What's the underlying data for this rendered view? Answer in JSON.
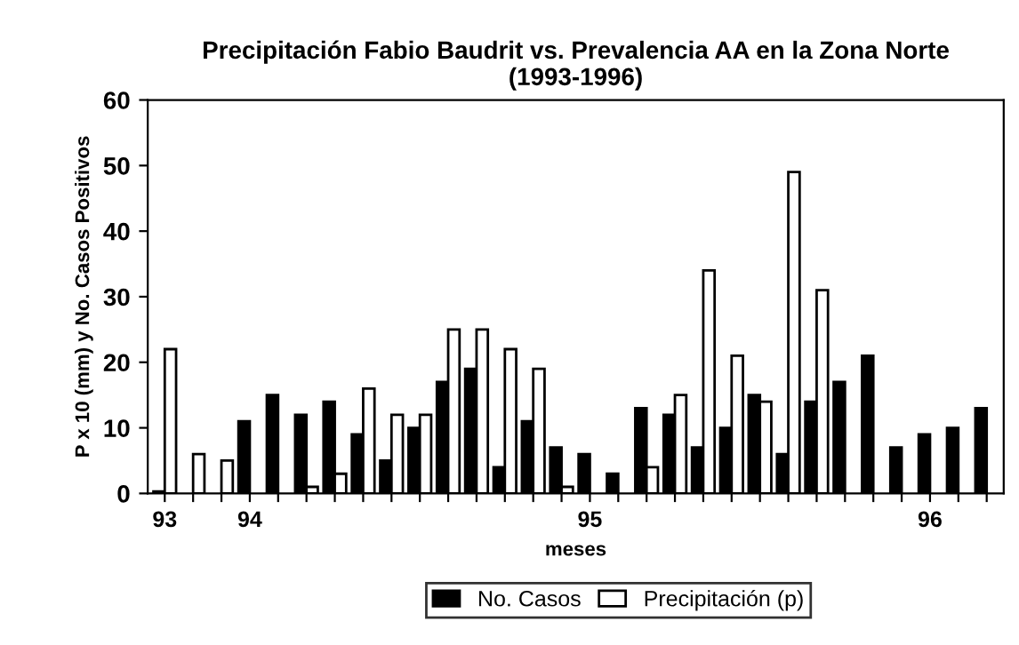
{
  "chart_data": {
    "type": "bar",
    "title": "Precipitación Fabio Baudrit vs. Prevalencia AA en la Zona Norte\n(1993-1996)",
    "xlabel": "meses",
    "ylabel": "P x 10 (mm) y No. Casos Positivos",
    "categories": [
      "93",
      null,
      null,
      "94",
      null,
      null,
      null,
      null,
      null,
      null,
      null,
      null,
      null,
      null,
      null,
      "95",
      null,
      null,
      null,
      null,
      null,
      null,
      null,
      null,
      null,
      null,
      null,
      "96",
      null,
      null
    ],
    "series": [
      {
        "name": "No. Casos",
        "color": "#000000",
        "values": [
          0.3,
          0,
          0,
          11,
          15,
          12,
          14,
          9,
          5,
          10,
          17,
          19,
          4,
          11,
          7,
          6,
          3,
          13,
          12,
          7,
          10,
          15,
          6,
          14,
          17,
          21,
          7,
          9,
          10,
          13
        ]
      },
      {
        "name": "Precipitación (p)",
        "color": "#ffffff",
        "values": [
          22,
          6,
          5,
          0,
          0,
          1,
          3,
          16,
          12,
          12,
          25,
          25,
          22,
          19,
          1,
          0,
          0,
          4,
          15,
          34,
          21,
          14,
          49,
          31,
          0,
          0,
          0,
          0,
          0,
          0
        ]
      }
    ],
    "ylim": [
      0,
      60
    ],
    "yticks": [
      0,
      10,
      20,
      30,
      40,
      50,
      60
    ],
    "grid": false,
    "legend": "bottom"
  }
}
